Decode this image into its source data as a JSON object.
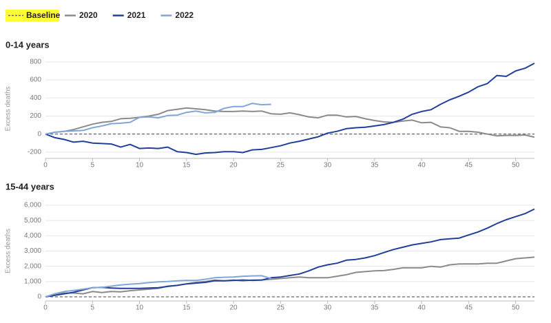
{
  "chart_data": [
    {
      "type": "line",
      "title": "0-14 years",
      "y_label": "Excess deaths",
      "baseline": {
        "name": "Baseline",
        "value": 0,
        "color": "#666666"
      },
      "x": [
        0,
        1,
        2,
        3,
        4,
        5,
        6,
        7,
        8,
        9,
        10,
        11,
        12,
        13,
        14,
        15,
        16,
        17,
        18,
        19,
        20,
        21,
        22,
        23,
        24,
        25,
        26,
        27,
        28,
        29,
        30,
        31,
        32,
        33,
        34,
        35,
        36,
        37,
        38,
        39,
        40,
        41,
        42,
        43,
        44,
        45,
        46,
        47,
        48,
        49,
        50,
        51,
        52
      ],
      "xlim": [
        0,
        52
      ],
      "xticks": [
        0,
        5,
        10,
        15,
        20,
        25,
        30,
        35,
        40,
        45,
        50
      ],
      "ylim": [
        -270,
        830
      ],
      "yticks": [
        -200,
        0,
        200,
        400,
        600,
        800
      ],
      "grid": true,
      "series": [
        {
          "name": "2020",
          "color": "#8a8a8a",
          "values": [
            0,
            20,
            30,
            50,
            80,
            110,
            130,
            140,
            170,
            175,
            185,
            200,
            220,
            260,
            275,
            290,
            280,
            270,
            255,
            250,
            250,
            255,
            250,
            255,
            225,
            220,
            235,
            215,
            190,
            180,
            210,
            210,
            190,
            195,
            170,
            150,
            135,
            130,
            145,
            155,
            125,
            130,
            80,
            70,
            30,
            30,
            20,
            0,
            -20,
            -15,
            -15,
            -10,
            -35
          ]
        },
        {
          "name": "2021",
          "color": "#1f3f99",
          "values": [
            0,
            -40,
            -60,
            -90,
            -80,
            -100,
            -105,
            -110,
            -145,
            -115,
            -160,
            -155,
            -160,
            -145,
            -195,
            -205,
            -225,
            -210,
            -205,
            -195,
            -195,
            -205,
            -175,
            -170,
            -150,
            -130,
            -100,
            -80,
            -55,
            -30,
            10,
            30,
            60,
            70,
            75,
            90,
            105,
            130,
            165,
            220,
            250,
            270,
            330,
            380,
            420,
            465,
            525,
            560,
            650,
            640,
            700,
            730,
            785
          ]
        },
        {
          "name": "2022",
          "color": "#7ea6d8",
          "values": [
            0,
            20,
            30,
            35,
            40,
            70,
            90,
            115,
            120,
            130,
            185,
            190,
            180,
            205,
            210,
            240,
            255,
            235,
            240,
            285,
            305,
            305,
            340,
            325,
            330,
            null,
            null,
            null,
            null,
            null,
            null,
            null,
            null,
            null,
            null,
            null,
            null,
            null,
            null,
            null,
            null,
            null,
            null,
            null,
            null,
            null,
            null,
            null,
            null,
            null,
            null,
            null,
            null
          ]
        }
      ]
    },
    {
      "type": "line",
      "title": "15-44 years",
      "y_label": "Excess deaths",
      "baseline": {
        "value": 0,
        "color": "#666666"
      },
      "x": [
        0,
        1,
        2,
        3,
        4,
        5,
        6,
        7,
        8,
        9,
        10,
        11,
        12,
        13,
        14,
        15,
        16,
        17,
        18,
        19,
        20,
        21,
        22,
        23,
        24,
        25,
        26,
        27,
        28,
        29,
        30,
        31,
        32,
        33,
        34,
        35,
        36,
        37,
        38,
        39,
        40,
        41,
        42,
        43,
        44,
        45,
        46,
        47,
        48,
        49,
        50,
        51,
        52
      ],
      "xlim": [
        0,
        52
      ],
      "xticks": [
        0,
        5,
        10,
        15,
        20,
        25,
        30,
        35,
        40,
        45,
        50
      ],
      "ylim": [
        -270,
        6270
      ],
      "yticks": [
        0,
        {
          "value": 1000,
          "label": "1,000"
        },
        {
          "value": 2000,
          "label": "2,000"
        },
        {
          "value": 3000,
          "label": "3,000"
        },
        {
          "value": 4000,
          "label": "4,000"
        },
        {
          "value": 5000,
          "label": "5,000"
        },
        {
          "value": 6000,
          "label": "6,000"
        }
      ],
      "grid": true,
      "series": [
        {
          "name": "2020",
          "color": "#8a8a8a",
          "values": [
            0,
            150,
            250,
            250,
            200,
            350,
            280,
            350,
            330,
            400,
            450,
            500,
            550,
            700,
            750,
            850,
            950,
            1000,
            1100,
            1050,
            1100,
            1050,
            1100,
            1100,
            1150,
            1200,
            1250,
            1300,
            1250,
            1250,
            1250,
            1350,
            1450,
            1600,
            1650,
            1700,
            1720,
            1800,
            1900,
            1900,
            1900,
            2000,
            1950,
            2100,
            2150,
            2150,
            2150,
            2200,
            2200,
            2350,
            2500,
            2550,
            2600
          ]
        },
        {
          "name": "2021",
          "color": "#1f3f99",
          "values": [
            0,
            100,
            200,
            300,
            450,
            600,
            620,
            580,
            550,
            550,
            550,
            580,
            600,
            680,
            750,
            850,
            900,
            950,
            1050,
            1050,
            1080,
            1100,
            1080,
            1100,
            1250,
            1300,
            1400,
            1500,
            1700,
            1950,
            2100,
            2200,
            2400,
            2450,
            2550,
            2700,
            2900,
            3100,
            3250,
            3400,
            3500,
            3600,
            3750,
            3800,
            3850,
            4050,
            4250,
            4500,
            4800,
            5050,
            5250,
            5450,
            5750
          ]
        },
        {
          "name": "2022",
          "color": "#7ea6d8",
          "values": [
            0,
            200,
            350,
            420,
            500,
            600,
            620,
            700,
            780,
            830,
            870,
            930,
            980,
            1000,
            1050,
            1080,
            1070,
            1150,
            1250,
            1280,
            1300,
            1350,
            1370,
            1380,
            1200,
            null,
            null,
            null,
            null,
            null,
            null,
            null,
            null,
            null,
            null,
            null,
            null,
            null,
            null,
            null,
            null,
            null,
            null,
            null,
            null,
            null,
            null,
            null,
            null,
            null,
            null,
            null,
            null
          ]
        }
      ]
    }
  ]
}
